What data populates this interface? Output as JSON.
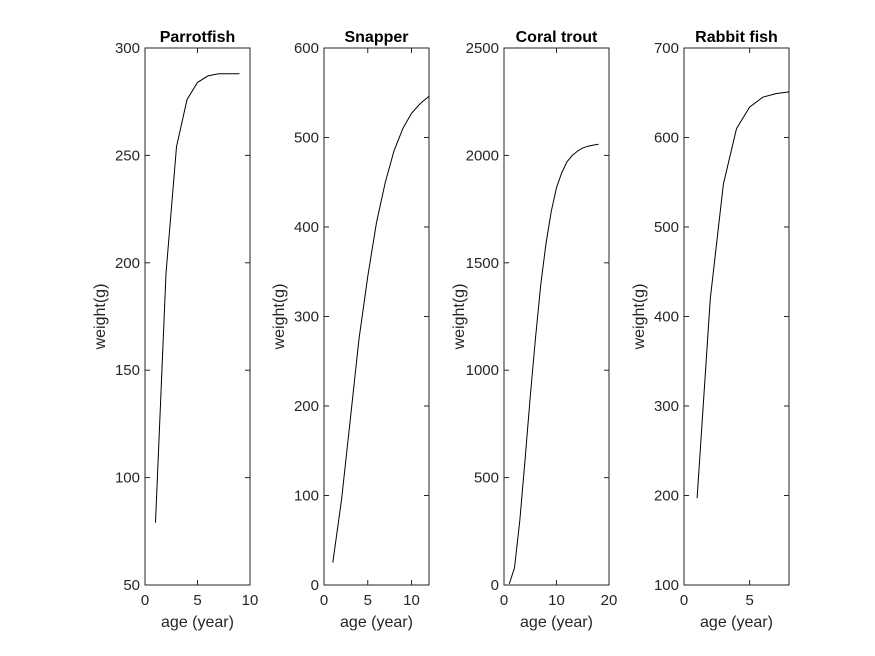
{
  "chart_data": [
    {
      "type": "line",
      "title": "Parrotfish",
      "xlabel": "age (year)",
      "ylabel": "weight(g)",
      "xlim": [
        0,
        10
      ],
      "ylim": [
        50,
        300
      ],
      "xticks": [
        0,
        5,
        10
      ],
      "yticks": [
        50,
        100,
        150,
        200,
        250,
        300
      ],
      "grid": false,
      "series": [
        {
          "x": [
            1,
            2,
            3,
            4,
            5,
            6,
            7,
            8,
            9
          ],
          "y": [
            79,
            195,
            254,
            276,
            284,
            287,
            288,
            288,
            288
          ]
        }
      ]
    },
    {
      "type": "line",
      "title": "Snapper",
      "xlabel": "age (year)",
      "ylabel": "weight(g)",
      "xlim": [
        0,
        12
      ],
      "ylim": [
        0,
        600
      ],
      "xticks": [
        0,
        5,
        10
      ],
      "yticks": [
        0,
        100,
        200,
        300,
        400,
        500,
        600
      ],
      "grid": false,
      "series": [
        {
          "x": [
            1,
            2,
            3,
            4,
            5,
            6,
            7,
            8,
            9,
            10,
            11,
            12
          ],
          "y": [
            25,
            95,
            185,
            275,
            345,
            405,
            450,
            485,
            510,
            527,
            538,
            546
          ]
        }
      ]
    },
    {
      "type": "line",
      "title": "Coral trout",
      "xlabel": "age (year)",
      "ylabel": "weight(g)",
      "xlim": [
        0,
        20
      ],
      "ylim": [
        0,
        2500
      ],
      "xticks": [
        0,
        10,
        20
      ],
      "yticks": [
        0,
        500,
        1000,
        1500,
        2000,
        2500
      ],
      "grid": false,
      "series": [
        {
          "x": [
            1,
            2,
            3,
            4,
            5,
            6,
            7,
            8,
            9,
            10,
            11,
            12,
            13,
            14,
            15,
            16,
            17,
            18
          ],
          "y": [
            5,
            80,
            300,
            580,
            880,
            1150,
            1400,
            1590,
            1740,
            1850,
            1920,
            1970,
            2000,
            2020,
            2035,
            2043,
            2048,
            2052
          ]
        }
      ]
    },
    {
      "type": "line",
      "title": "Rabbit fish",
      "xlabel": "age (year)",
      "ylabel": "weight(g)",
      "xlim": [
        0,
        8
      ],
      "ylim": [
        100,
        700
      ],
      "xticks": [
        0,
        5
      ],
      "yticks": [
        100,
        200,
        300,
        400,
        500,
        600,
        700
      ],
      "grid": false,
      "series": [
        {
          "x": [
            1,
            2,
            3,
            4,
            5,
            6,
            7,
            8
          ],
          "y": [
            197,
            420,
            548,
            610,
            634,
            645,
            649,
            651
          ]
        }
      ]
    }
  ],
  "colors": {
    "axis": "#262626",
    "line": "#000000",
    "background": "#ffffff"
  }
}
